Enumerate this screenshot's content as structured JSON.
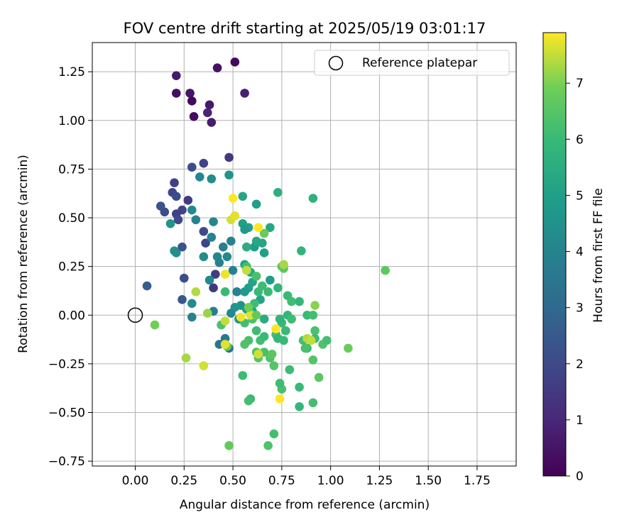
{
  "chart_data": {
    "type": "scatter",
    "title": "FOV centre drift starting at 2025/05/19 03:01:17",
    "xlabel": "Angular distance from reference (arcmin)",
    "ylabel": "Rotation from reference (arcmin)",
    "xlim": [
      -0.22,
      1.95
    ],
    "ylim": [
      -0.775,
      1.4
    ],
    "xticks": [
      0.0,
      0.25,
      0.5,
      0.75,
      1.0,
      1.25,
      1.5,
      1.75
    ],
    "xtick_labels": [
      "0.00",
      "0.25",
      "0.50",
      "0.75",
      "1.00",
      "1.25",
      "1.50",
      "1.75"
    ],
    "yticks": [
      -0.75,
      -0.5,
      -0.25,
      0.0,
      0.25,
      0.5,
      0.75,
      1.0,
      1.25
    ],
    "ytick_labels": [
      "−0.75",
      "−0.50",
      "−0.25",
      "0.00",
      "0.25",
      "0.50",
      "0.75",
      "1.00",
      "1.25"
    ],
    "grid": true,
    "legend": {
      "position": "top-right",
      "entries": [
        "Reference platepar"
      ]
    },
    "reference": {
      "x": 0.0,
      "y": 0.0,
      "label": "Reference platepar"
    },
    "colorbar": {
      "label": "Hours from first FF file",
      "colormap": "viridis",
      "range": [
        0,
        7.9
      ],
      "ticks": [
        0,
        1,
        2,
        3,
        4,
        5,
        6,
        7
      ],
      "tick_labels": [
        "0",
        "1",
        "2",
        "3",
        "4",
        "5",
        "6",
        "7"
      ]
    },
    "points": [
      [
        0.51,
        1.3,
        0.2
      ],
      [
        0.42,
        1.27,
        0.4
      ],
      [
        0.21,
        1.23,
        0.6
      ],
      [
        0.21,
        1.14,
        0.3
      ],
      [
        0.28,
        1.14,
        0.5
      ],
      [
        0.56,
        1.14,
        0.8
      ],
      [
        0.29,
        1.1,
        0.2
      ],
      [
        0.38,
        1.08,
        0.6
      ],
      [
        0.37,
        1.04,
        0.9
      ],
      [
        0.3,
        1.02,
        0.3
      ],
      [
        0.39,
        0.99,
        0.7
      ],
      [
        0.48,
        0.81,
        1.5
      ],
      [
        0.35,
        0.78,
        1.8
      ],
      [
        0.29,
        0.76,
        2.1
      ],
      [
        0.2,
        0.68,
        1.7
      ],
      [
        0.19,
        0.63,
        1.9
      ],
      [
        0.21,
        0.61,
        2.1
      ],
      [
        0.27,
        0.59,
        1.6
      ],
      [
        0.13,
        0.56,
        2.3
      ],
      [
        0.15,
        0.53,
        2.2
      ],
      [
        0.24,
        0.54,
        1.8
      ],
      [
        0.21,
        0.52,
        1.7
      ],
      [
        0.22,
        0.49,
        2.0
      ],
      [
        0.35,
        0.43,
        2.0
      ],
      [
        0.36,
        0.37,
        1.9
      ],
      [
        0.4,
        0.14,
        1.5
      ],
      [
        0.41,
        0.21,
        1.6
      ],
      [
        0.24,
        0.35,
        2.3
      ],
      [
        0.25,
        0.19,
        2.1
      ],
      [
        0.24,
        0.08,
        2.5
      ],
      [
        0.06,
        0.15,
        2.6
      ],
      [
        0.29,
        0.54,
        4.2
      ],
      [
        0.31,
        0.49,
        4.0
      ],
      [
        0.33,
        0.71,
        4.1
      ],
      [
        0.39,
        0.7,
        4.3
      ],
      [
        0.48,
        0.72,
        4.6
      ],
      [
        0.4,
        0.48,
        4.1
      ],
      [
        0.39,
        0.4,
        3.9
      ],
      [
        0.45,
        0.35,
        3.8
      ],
      [
        0.49,
        0.38,
        3.9
      ],
      [
        0.42,
        0.3,
        4.1
      ],
      [
        0.47,
        0.3,
        4.2
      ],
      [
        0.43,
        0.27,
        4.0
      ],
      [
        0.35,
        0.3,
        4.3
      ],
      [
        0.38,
        0.18,
        4.2
      ],
      [
        0.2,
        0.33,
        4.5
      ],
      [
        0.21,
        0.32,
        4.4
      ],
      [
        0.18,
        0.47,
        4.6
      ],
      [
        0.29,
        0.06,
        4.3
      ],
      [
        0.29,
        -0.01,
        4.0
      ],
      [
        0.4,
        0.02,
        3.8
      ],
      [
        0.43,
        -0.15,
        3.5
      ],
      [
        0.46,
        -0.12,
        3.6
      ],
      [
        0.48,
        -0.17,
        3.4
      ],
      [
        0.5,
        0.23,
        4.0
      ],
      [
        0.52,
        0.12,
        3.9
      ],
      [
        0.55,
        0.61,
        5.2
      ],
      [
        0.55,
        0.47,
        5.0
      ],
      [
        0.58,
        0.45,
        5.1
      ],
      [
        0.56,
        0.44,
        4.8
      ],
      [
        0.62,
        0.57,
        5.0
      ],
      [
        0.61,
        0.35,
        4.9
      ],
      [
        0.62,
        0.38,
        5.3
      ],
      [
        0.65,
        0.37,
        5.2
      ],
      [
        0.66,
        0.32,
        5.0
      ],
      [
        0.69,
        0.45,
        5.3
      ],
      [
        0.73,
        0.63,
        5.6
      ],
      [
        0.91,
        0.6,
        5.7
      ],
      [
        0.85,
        0.33,
        5.8
      ],
      [
        0.56,
        0.26,
        5.0
      ],
      [
        0.57,
        0.24,
        5.3
      ],
      [
        0.59,
        0.22,
        5.4
      ],
      [
        0.6,
        0.17,
        5.2
      ],
      [
        0.58,
        0.14,
        5.0
      ],
      [
        0.56,
        0.12,
        4.8
      ],
      [
        0.54,
        0.05,
        4.5
      ],
      [
        0.51,
        0.04,
        4.6
      ],
      [
        0.49,
        0.01,
        4.2
      ],
      [
        0.53,
        -0.02,
        4.7
      ],
      [
        0.57,
        0.03,
        4.9
      ],
      [
        0.6,
        0.02,
        5.0
      ],
      [
        0.64,
        0.08,
        5.2
      ],
      [
        0.66,
        -0.02,
        5.5
      ],
      [
        0.69,
        0.18,
        4.9
      ],
      [
        0.73,
        0.14,
        5.8
      ],
      [
        0.78,
        0.1,
        6.0
      ],
      [
        0.8,
        0.07,
        6.1
      ],
      [
        0.84,
        0.07,
        5.9
      ],
      [
        0.75,
        -0.04,
        6.0
      ],
      [
        0.78,
        0.0,
        5.9
      ],
      [
        0.8,
        -0.02,
        6.1
      ],
      [
        0.88,
        0.0,
        6.0
      ],
      [
        0.91,
        0.0,
        6.2
      ],
      [
        0.74,
        -0.02,
        5.8
      ],
      [
        0.72,
        -0.1,
        6.2
      ],
      [
        0.77,
        -0.08,
        6.0
      ],
      [
        0.73,
        -0.12,
        5.9
      ],
      [
        0.76,
        -0.13,
        6.0
      ],
      [
        0.86,
        -0.13,
        6.2
      ],
      [
        0.88,
        -0.17,
        6.0
      ],
      [
        0.92,
        -0.08,
        6.3
      ],
      [
        0.92,
        -0.12,
        6.1
      ],
      [
        0.96,
        -0.15,
        6.4
      ],
      [
        0.98,
        -0.13,
        6.2
      ],
      [
        0.91,
        -0.23,
        6.5
      ],
      [
        0.94,
        -0.32,
        6.6
      ],
      [
        0.87,
        -0.17,
        6.3
      ],
      [
        1.09,
        -0.17,
        6.8
      ],
      [
        1.28,
        0.23,
        6.6
      ],
      [
        0.79,
        -0.28,
        6.1
      ],
      [
        0.84,
        -0.37,
        6.0
      ],
      [
        0.84,
        -0.47,
        5.9
      ],
      [
        0.91,
        -0.45,
        6.2
      ],
      [
        0.75,
        -0.38,
        6.3
      ],
      [
        0.74,
        -0.35,
        6.1
      ],
      [
        0.71,
        -0.61,
        6.2
      ],
      [
        0.68,
        -0.67,
        6.4
      ],
      [
        0.59,
        -0.43,
        6.0
      ],
      [
        0.58,
        -0.44,
        6.2
      ],
      [
        0.55,
        -0.31,
        6.1
      ],
      [
        0.62,
        -0.19,
        6.4
      ],
      [
        0.63,
        -0.22,
        6.5
      ],
      [
        0.66,
        -0.19,
        6.3
      ],
      [
        0.69,
        -0.22,
        6.4
      ],
      [
        0.7,
        -0.2,
        6.6
      ],
      [
        0.71,
        -0.26,
        6.5
      ],
      [
        0.64,
        -0.13,
        6.2
      ],
      [
        0.66,
        -0.11,
        6.0
      ],
      [
        0.58,
        -0.13,
        6.3
      ],
      [
        0.56,
        -0.15,
        6.4
      ],
      [
        0.62,
        -0.08,
        6.1
      ],
      [
        0.6,
        -0.02,
        6.3
      ],
      [
        0.59,
        0.01,
        6.5
      ],
      [
        0.56,
        -0.04,
        6.2
      ],
      [
        0.61,
        0.06,
        6.1
      ],
      [
        0.63,
        0.12,
        6.0
      ],
      [
        0.62,
        0.2,
        6.3
      ],
      [
        0.65,
        0.15,
        6.1
      ],
      [
        0.57,
        0.25,
        6.2
      ],
      [
        0.68,
        0.12,
        6.0
      ],
      [
        0.75,
        0.25,
        6.5
      ],
      [
        0.76,
        0.24,
        6.6
      ],
      [
        0.66,
        0.42,
        6.8
      ],
      [
        0.57,
        0.35,
        5.5
      ],
      [
        0.46,
        0.12,
        6.0
      ],
      [
        0.44,
        -0.05,
        6.3
      ],
      [
        0.47,
        -0.16,
        6.8
      ],
      [
        0.48,
        -0.67,
        6.7
      ],
      [
        0.1,
        -0.05,
        6.9
      ],
      [
        0.26,
        -0.22,
        7.3
      ],
      [
        0.35,
        -0.26,
        7.6
      ],
      [
        0.31,
        0.12,
        7.4
      ],
      [
        0.37,
        0.01,
        7.2
      ],
      [
        0.46,
        -0.03,
        7.5
      ],
      [
        0.46,
        -0.15,
        7.7
      ],
      [
        0.46,
        0.21,
        7.8
      ],
      [
        0.49,
        0.49,
        7.6
      ],
      [
        0.51,
        0.51,
        7.7
      ],
      [
        0.5,
        0.6,
        7.9
      ],
      [
        0.54,
        -0.01,
        7.8
      ],
      [
        0.57,
        0.23,
        7.5
      ],
      [
        0.59,
        0.0,
        7.7
      ],
      [
        0.63,
        0.45,
        7.9
      ],
      [
        0.63,
        -0.2,
        7.6
      ],
      [
        0.72,
        -0.07,
        7.9
      ],
      [
        0.74,
        -0.43,
        7.9
      ],
      [
        0.76,
        0.26,
        7.3
      ],
      [
        0.88,
        -0.12,
        7.4
      ],
      [
        0.9,
        -0.13,
        7.5
      ],
      [
        0.92,
        0.05,
        7.1
      ],
      [
        0.58,
        0.04,
        6.9
      ],
      [
        0.62,
        0.0,
        6.7
      ]
    ]
  }
}
